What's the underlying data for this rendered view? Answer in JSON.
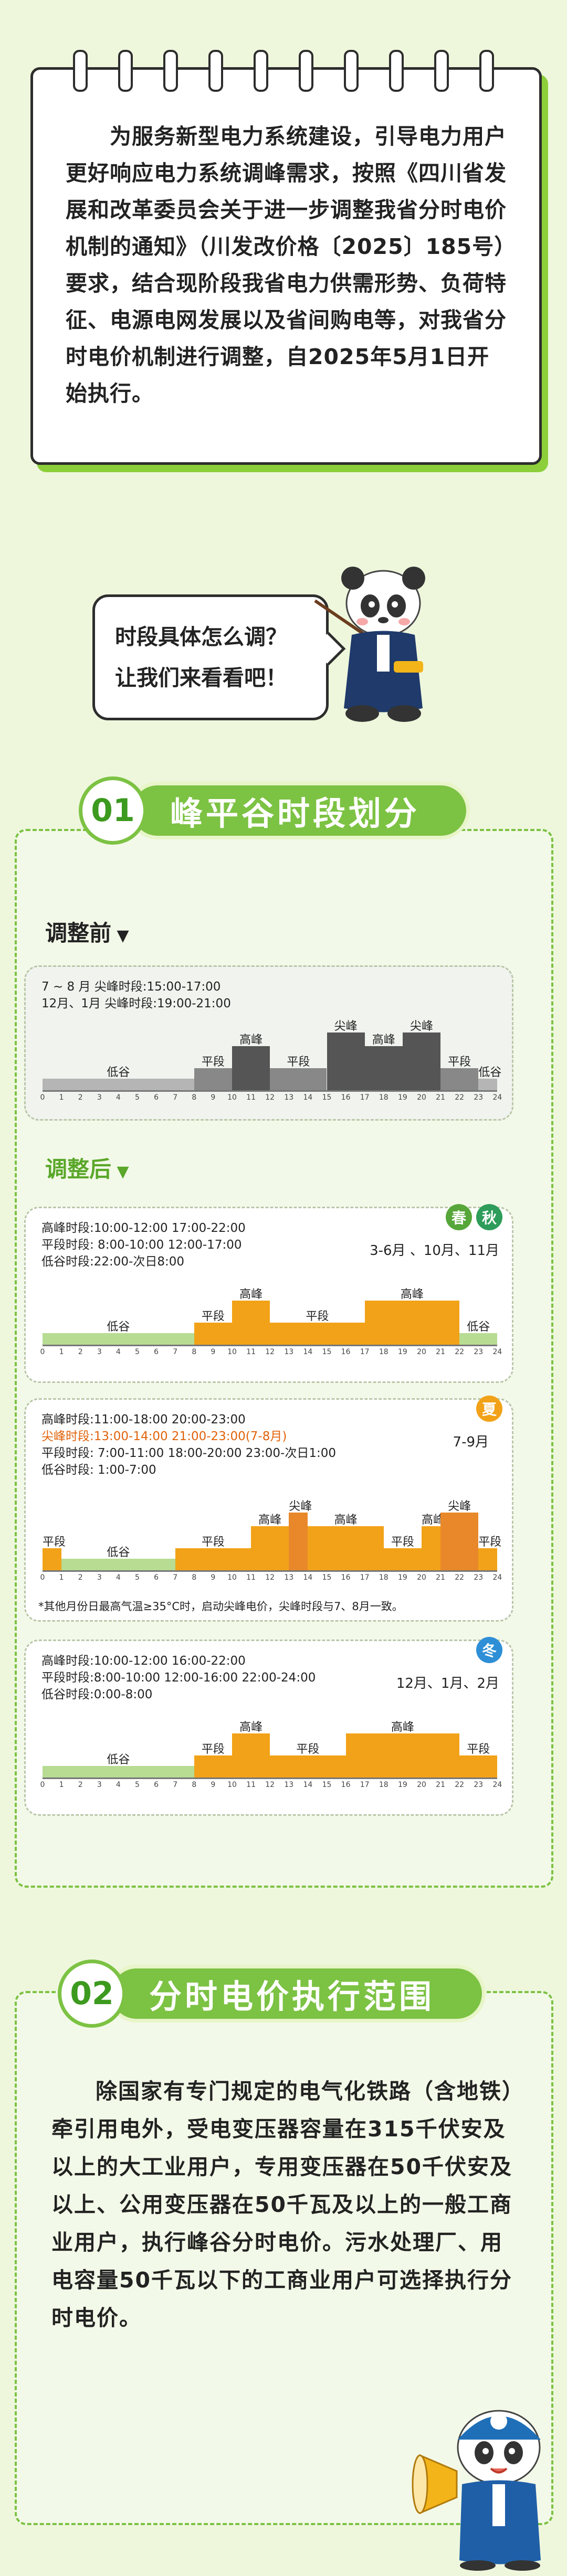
{
  "intro": {
    "text": "为服务新型电力系统建设，引导电力用户更好响应电力系统调峰需求，按照《四川省发展和改革委员会关于进一步调整我省分时电价机制的通知》（川发改价格〔2025〕185号）要求，结合现阶段我省电力供需形势、负荷特征、电源电网发展以及省间购电等，对我省分时电价机制进行调整，自2025年5月1日开始执行。"
  },
  "bubble": {
    "line1": "时段具体怎么调？",
    "line2": "让我们来看看吧！"
  },
  "section1": {
    "number": "01",
    "title": "峰平谷时段划分",
    "before_label": "调整前",
    "after_label": "调整后",
    "before": {
      "line1": "7 ~ 8 月  尖峰时段:15:00-17:00",
      "line2": "12月、1月  尖峰时段:19:00-21:00",
      "labels": [
        "低谷",
        "平段",
        "高峰",
        "平段",
        "尖峰",
        "高峰",
        "尖峰",
        "平段",
        "低谷"
      ]
    },
    "spring_autumn": {
      "tags": [
        "春",
        "秋"
      ],
      "months": "3-6月 、10月、11月",
      "lines": [
        "高峰时段:10:00-12:00  17:00-22:00",
        "平段时段:  8:00-10:00  12:00-17:00",
        "低谷时段:22:00-次日8:00"
      ],
      "labels": [
        "低谷",
        "平段",
        "高峰",
        "平段",
        "高峰",
        "低谷"
      ]
    },
    "summer": {
      "tag": "夏",
      "months": "7-9月",
      "lines": [
        "高峰时段:11:00-18:00  20:00-23:00",
        "尖峰时段:13:00-14:00  21:00-23:00(7-8月)",
        "平段时段:  7:00-11:00  18:00-20:00  23:00-次日1:00",
        "低谷时段:  1:00-7:00"
      ],
      "labels": [
        "平段",
        "低谷",
        "平段",
        "高峰",
        "尖峰",
        "高峰",
        "平段",
        "高峰",
        "尖峰",
        "平段"
      ],
      "note": "*其他月份日最高气温≥35°C时，启动尖峰电价，尖峰时段与7、8月一致。"
    },
    "winter": {
      "tag": "冬",
      "months": "12月、1月、2月",
      "lines": [
        "高峰时段:10:00-12:00  16:00-22:00",
        "平段时段:8:00-10:00  12:00-16:00  22:00-24:00",
        "低谷时段:0:00-8:00"
      ],
      "labels": [
        "低谷",
        "平段",
        "高峰",
        "平段",
        "高峰",
        "平段"
      ]
    },
    "hours": [
      "0",
      "1",
      "2",
      "3",
      "4",
      "5",
      "6",
      "7",
      "8",
      "9",
      "10",
      "11",
      "12",
      "13",
      "14",
      "15",
      "16",
      "17",
      "18",
      "19",
      "20",
      "21",
      "22",
      "23",
      "24"
    ]
  },
  "section2": {
    "number": "02",
    "title": "分时电价执行范围",
    "text": "除国家有专门规定的电气化铁路（含地铁）牵引用电外，受电变压器容量在315千伏安及以上的大工业用户，专用变压器在50千伏安及以上、公用变压器在50千瓦及以上的一般工商业用户，执行峰谷分时电价。污水处理厂、用电容量50千瓦以下的工商业用户可选择执行分时电价。"
  },
  "colors": {
    "green": "#7cc243",
    "orange": "#f2a218",
    "dark_orange": "#e8882a",
    "gray_peak": "#555555",
    "gray_flat": "#888888",
    "gray_valley": "#b5b5b5",
    "valley_green": "#b7dc92"
  },
  "icons": [
    "panda-mascot-icon",
    "pointer-stick-icon",
    "megaphone-icon",
    "panda-mascot-icon"
  ]
}
